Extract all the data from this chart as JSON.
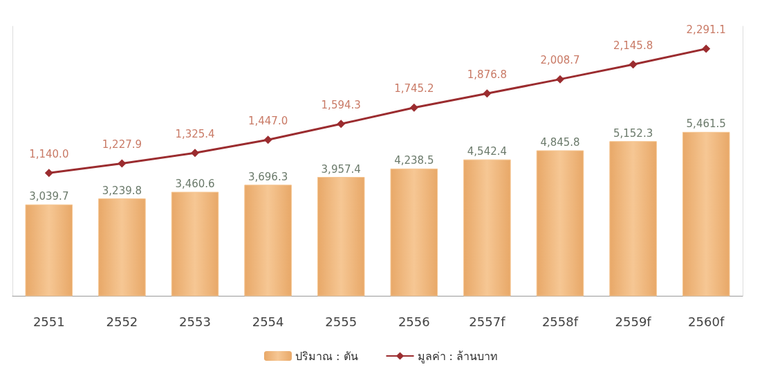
{
  "chart_data": {
    "type": "bar",
    "categories": [
      "2551",
      "2552",
      "2553",
      "2554",
      "2555",
      "2556",
      "2557f",
      "2558f",
      "2559f",
      "2560f"
    ],
    "series": [
      {
        "name": "ปริมาณ : ตัน",
        "color": "#f6c794",
        "values": [
          3039.7,
          3239.8,
          3460.6,
          3696.3,
          3957.4,
          4238.5,
          4542.4,
          4845.8,
          5152.3,
          5461.5
        ],
        "value_labels": [
          "3,039.7",
          "3,239.8",
          "3,460.6",
          "3,696.3",
          "3,957.4",
          "4,238.5",
          "4,542.4",
          "4,845.8",
          "5,152.3",
          "5,461.5"
        ]
      },
      {
        "name": "มูลค่า : ล้านบาท",
        "type": "line",
        "axis": "y2",
        "color": "#9b2c2f",
        "values": [
          1140.0,
          1227.9,
          1325.4,
          1447.0,
          1594.3,
          1745.2,
          1876.8,
          2008.7,
          2145.8,
          2291.1
        ],
        "value_labels": [
          "1,140.0",
          "1,227.9",
          "1,325.4",
          "1,447.0",
          "1,594.3",
          "1,745.2",
          "1,876.8",
          "2,008.7",
          "2,145.8",
          "2,291.1"
        ]
      }
    ],
    "ylim": [
      0,
      9000
    ],
    "y2lim": [
      0,
      2500
    ],
    "tick_labels": "x",
    "grid": false,
    "legend": "bottom",
    "marker": "diamond",
    "line_style": "solid"
  }
}
